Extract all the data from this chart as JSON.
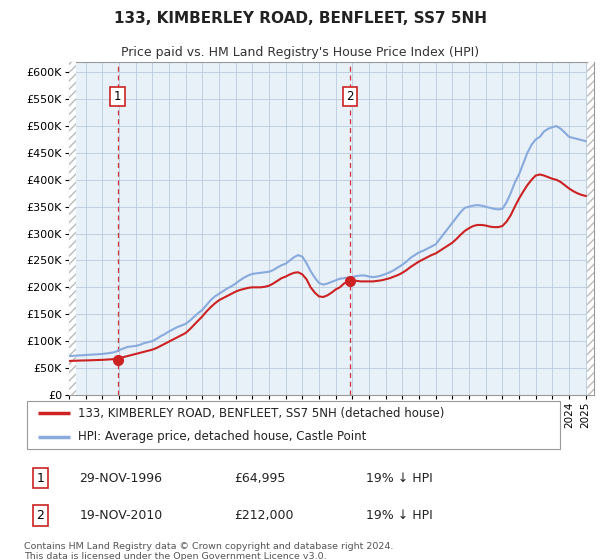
{
  "title": "133, KIMBERLEY ROAD, BENFLEET, SS7 5NH",
  "subtitle": "Price paid vs. HM Land Registry's House Price Index (HPI)",
  "legend_line1": "133, KIMBERLEY ROAD, BENFLEET, SS7 5NH (detached house)",
  "legend_line2": "HPI: Average price, detached house, Castle Point",
  "footnote": "Contains HM Land Registry data © Crown copyright and database right 2024.\nThis data is licensed under the Open Government Licence v3.0.",
  "sale1_label": "1",
  "sale1_date": "29-NOV-1996",
  "sale1_price": "£64,995",
  "sale1_hpi": "19% ↓ HPI",
  "sale2_label": "2",
  "sale2_date": "19-NOV-2010",
  "sale2_price": "£212,000",
  "sale2_hpi": "19% ↓ HPI",
  "xmin": 1994.0,
  "xmax": 2025.5,
  "ymin": 0,
  "ymax": 620000,
  "yticks": [
    0,
    50000,
    100000,
    150000,
    200000,
    250000,
    300000,
    350000,
    400000,
    450000,
    500000,
    550000,
    600000
  ],
  "hpi_color": "#88aadd",
  "price_color": "#cc2222",
  "dot_color": "#cc2222",
  "bg_color": "#e8f0f8",
  "grid_color": "#bbccdd",
  "sale1_x": 1996.91,
  "sale1_y": 64995,
  "sale2_x": 2010.88,
  "sale2_y": 212000,
  "hpi_x": [
    1994.0,
    1994.25,
    1994.5,
    1994.75,
    1995.0,
    1995.25,
    1995.5,
    1995.75,
    1996.0,
    1996.25,
    1996.5,
    1996.75,
    1997.0,
    1997.25,
    1997.5,
    1997.75,
    1998.0,
    1998.25,
    1998.5,
    1998.75,
    1999.0,
    1999.25,
    1999.5,
    1999.75,
    2000.0,
    2000.25,
    2000.5,
    2000.75,
    2001.0,
    2001.25,
    2001.5,
    2001.75,
    2002.0,
    2002.25,
    2002.5,
    2002.75,
    2003.0,
    2003.25,
    2003.5,
    2003.75,
    2004.0,
    2004.25,
    2004.5,
    2004.75,
    2005.0,
    2005.25,
    2005.5,
    2005.75,
    2006.0,
    2006.25,
    2006.5,
    2006.75,
    2007.0,
    2007.25,
    2007.5,
    2007.75,
    2008.0,
    2008.25,
    2008.5,
    2008.75,
    2009.0,
    2009.25,
    2009.5,
    2009.75,
    2010.0,
    2010.25,
    2010.5,
    2010.75,
    2011.0,
    2011.25,
    2011.5,
    2011.75,
    2012.0,
    2012.25,
    2012.5,
    2012.75,
    2013.0,
    2013.25,
    2013.5,
    2013.75,
    2014.0,
    2014.25,
    2014.5,
    2014.75,
    2015.0,
    2015.25,
    2015.5,
    2015.75,
    2016.0,
    2016.25,
    2016.5,
    2016.75,
    2017.0,
    2017.25,
    2017.5,
    2017.75,
    2018.0,
    2018.25,
    2018.5,
    2018.75,
    2019.0,
    2019.25,
    2019.5,
    2019.75,
    2020.0,
    2020.25,
    2020.5,
    2020.75,
    2021.0,
    2021.25,
    2021.5,
    2021.75,
    2022.0,
    2022.25,
    2022.5,
    2022.75,
    2023.0,
    2023.25,
    2023.5,
    2023.75,
    2024.0,
    2024.25,
    2024.5,
    2024.75,
    2025.0
  ],
  "hpi_y": [
    72000,
    72500,
    73000,
    73500,
    74000,
    74500,
    75000,
    75500,
    76000,
    77000,
    78000,
    79500,
    83000,
    86000,
    89000,
    90000,
    91000,
    93000,
    96000,
    98000,
    100000,
    104000,
    109000,
    113000,
    118000,
    122000,
    126000,
    129000,
    132000,
    138000,
    145000,
    152000,
    158000,
    167000,
    176000,
    183000,
    188000,
    193000,
    198000,
    202000,
    207000,
    213000,
    218000,
    222000,
    225000,
    226000,
    227000,
    228000,
    229000,
    232000,
    237000,
    241000,
    244000,
    250000,
    256000,
    260000,
    257000,
    245000,
    230000,
    218000,
    208000,
    205000,
    207000,
    210000,
    213000,
    216000,
    217000,
    218000,
    219000,
    221000,
    222000,
    222000,
    220000,
    219000,
    220000,
    222000,
    225000,
    228000,
    232000,
    237000,
    242000,
    248000,
    255000,
    260000,
    265000,
    268000,
    272000,
    276000,
    280000,
    290000,
    300000,
    310000,
    320000,
    330000,
    340000,
    348000,
    350000,
    352000,
    353000,
    352000,
    350000,
    348000,
    346000,
    345000,
    346000,
    358000,
    375000,
    395000,
    410000,
    430000,
    450000,
    465000,
    475000,
    480000,
    490000,
    495000,
    498000,
    500000,
    495000,
    488000,
    480000,
    478000,
    476000,
    474000,
    472000
  ],
  "price_x": [
    1994.0,
    1994.25,
    1994.5,
    1994.75,
    1995.0,
    1995.25,
    1995.5,
    1995.75,
    1996.0,
    1996.25,
    1996.5,
    1996.75,
    1997.0,
    1997.25,
    1997.5,
    1997.75,
    1998.0,
    1998.25,
    1998.5,
    1998.75,
    1999.0,
    1999.25,
    1999.5,
    1999.75,
    2000.0,
    2000.25,
    2000.5,
    2000.75,
    2001.0,
    2001.25,
    2001.5,
    2001.75,
    2002.0,
    2002.25,
    2002.5,
    2002.75,
    2003.0,
    2003.25,
    2003.5,
    2003.75,
    2004.0,
    2004.25,
    2004.5,
    2004.75,
    2005.0,
    2005.25,
    2005.5,
    2005.75,
    2006.0,
    2006.25,
    2006.5,
    2006.75,
    2007.0,
    2007.25,
    2007.5,
    2007.75,
    2008.0,
    2008.25,
    2008.5,
    2008.75,
    2009.0,
    2009.25,
    2009.5,
    2009.75,
    2010.0,
    2010.25,
    2010.5,
    2010.75,
    2011.0,
    2011.25,
    2011.5,
    2011.75,
    2012.0,
    2012.25,
    2012.5,
    2012.75,
    2013.0,
    2013.25,
    2013.5,
    2013.75,
    2014.0,
    2014.25,
    2014.5,
    2014.75,
    2015.0,
    2015.25,
    2015.5,
    2015.75,
    2016.0,
    2016.25,
    2016.5,
    2016.75,
    2017.0,
    2017.25,
    2017.5,
    2017.75,
    2018.0,
    2018.25,
    2018.5,
    2018.75,
    2019.0,
    2019.25,
    2019.5,
    2019.75,
    2020.0,
    2020.25,
    2020.5,
    2020.75,
    2021.0,
    2021.25,
    2021.5,
    2021.75,
    2022.0,
    2022.25,
    2022.5,
    2022.75,
    2023.0,
    2023.25,
    2023.5,
    2023.75,
    2024.0,
    2024.25,
    2024.5,
    2024.75,
    2025.0
  ],
  "price_y": [
    63000,
    63200,
    63500,
    63800,
    64000,
    64200,
    64500,
    64800,
    65000,
    65500,
    66000,
    66500,
    68000,
    70000,
    72000,
    74000,
    76000,
    78000,
    80000,
    82000,
    84000,
    87000,
    91000,
    95000,
    99000,
    103000,
    107000,
    111000,
    115000,
    122000,
    130000,
    138000,
    146000,
    155000,
    163000,
    170000,
    176000,
    180000,
    184000,
    188000,
    192000,
    195000,
    197000,
    199000,
    200000,
    200000,
    200000,
    201000,
    203000,
    207000,
    212000,
    217000,
    220000,
    224000,
    227000,
    228000,
    224000,
    215000,
    200000,
    190000,
    183000,
    182000,
    185000,
    190000,
    196000,
    200000,
    207000,
    212000,
    213000,
    212000,
    211000,
    211000,
    211000,
    211000,
    212000,
    213000,
    215000,
    217000,
    220000,
    223000,
    227000,
    232000,
    238000,
    243000,
    248000,
    252000,
    256000,
    260000,
    263000,
    268000,
    273000,
    278000,
    283000,
    290000,
    298000,
    305000,
    310000,
    314000,
    316000,
    316000,
    315000,
    313000,
    312000,
    312000,
    314000,
    322000,
    334000,
    350000,
    365000,
    378000,
    390000,
    400000,
    408000,
    410000,
    408000,
    405000,
    402000,
    400000,
    396000,
    390000,
    384000,
    379000,
    375000,
    372000,
    370000
  ]
}
